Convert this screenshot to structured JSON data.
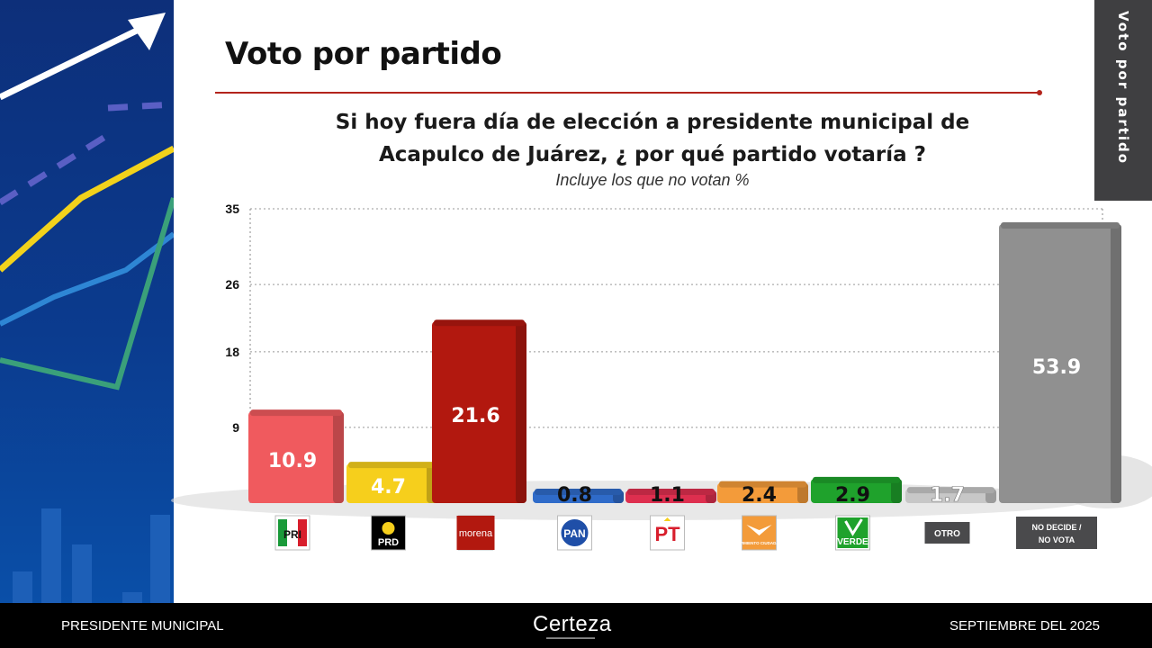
{
  "header": {
    "title": "Voto por partido",
    "side_tab": "Voto por partido"
  },
  "question": {
    "line1": "Si hoy fuera día de elección a presidente municipal  de",
    "line2": "Acapulco de Juárez, ¿ por qué partido votaría ?",
    "note": "Incluye los que no votan %"
  },
  "chart_data": {
    "type": "bar",
    "title": "",
    "xlabel": "",
    "ylabel": "",
    "ylim": [
      0,
      35
    ],
    "yticks": [
      35,
      26,
      18,
      9
    ],
    "grid": true,
    "categories": [
      "PRI",
      "PRD",
      "morena",
      "PAN",
      "PT",
      "MOVIMIENTO CIUDADANO",
      "VERDE",
      "OTRO",
      "NO DECIDE / NO VOTA"
    ],
    "values": [
      10.9,
      4.7,
      21.6,
      0.8,
      1.1,
      2.4,
      2.9,
      1.7,
      53.9
    ],
    "value_labels": [
      "10.9",
      "4.7",
      "21.6",
      "0.8",
      "1.1",
      "2.4",
      "2.9",
      "1.7",
      "53.9"
    ],
    "colors": [
      "#f05a5e",
      "#f6cf1c",
      "#b2180f",
      "#2f6bc9",
      "#de2f4f",
      "#f39b3a",
      "#1fa22c",
      "#c7c7c7",
      "#909090"
    ],
    "logos": [
      {
        "label": "PRI",
        "icon": "pri-logo-icon"
      },
      {
        "label": "PRD",
        "icon": "prd-logo-icon"
      },
      {
        "label": "morena",
        "icon": "morena-logo-icon"
      },
      {
        "label": "PAN",
        "icon": "pan-logo-icon"
      },
      {
        "label": "PT",
        "icon": "pt-logo-icon"
      },
      {
        "label": "MOVIMIENTO CIUDADANO",
        "icon": "mc-logo-icon"
      },
      {
        "label": "VERDE",
        "icon": "verde-logo-icon"
      },
      {
        "label": "OTRO",
        "icon": "otro-label"
      },
      {
        "label": "NO DECIDE / NO VOTA",
        "icon": "no-decide-label"
      }
    ]
  },
  "footer": {
    "left": "PRESIDENTE MUNICIPAL",
    "brand": "Certeza",
    "right": "SEPTIEMBRE DEL 2025"
  }
}
